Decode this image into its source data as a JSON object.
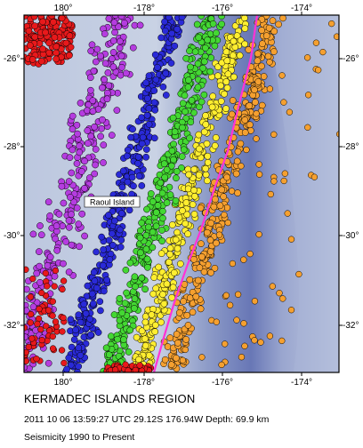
{
  "map": {
    "top_ticks": [
      "180°",
      "-178°",
      "-176°",
      "-174°"
    ],
    "bottom_ticks": [
      "180°",
      "-178°",
      "-176°",
      "-174°"
    ],
    "left_ticks": [
      "-26°",
      "-28°",
      "-30°",
      "-32°"
    ],
    "right_ticks": [
      "-26°",
      "-28°",
      "-30°",
      "-32°"
    ],
    "island_label": "Raoul Island",
    "colors": {
      "ocean_deep": "#5d6fb0",
      "ocean_shallow": "#c6cfe2",
      "plate_boundary": "#ff33d6",
      "depth_shallow": "#f5a030",
      "depth_mid_shallow": "#ffee30",
      "depth_mid": "#44d833",
      "depth_deep": "#2a2ad8",
      "depth_very_deep": "#b53de0",
      "depth_deepest": "#e8191b"
    }
  },
  "caption": {
    "region": "KERMADEC ISLANDS REGION",
    "event": "2011 10 06 13:59:27 UTC 29.12S 176.94W Depth: 69.9 km",
    "seismicity": "Seismicity 1990 to Present"
  }
}
